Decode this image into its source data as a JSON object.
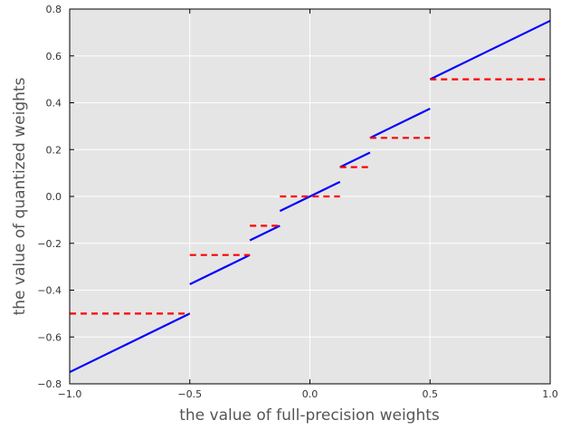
{
  "chart_data": {
    "type": "line",
    "title": "",
    "xlabel": "the value of full-precision weights",
    "ylabel": "the value of quantized weights",
    "xlim": [
      -1.0,
      1.0
    ],
    "ylim": [
      -0.8,
      0.8
    ],
    "grid": true,
    "background": "#e5e5e5",
    "xticks": [
      -1.0,
      -0.5,
      0.0,
      0.5,
      1.0
    ],
    "xtick_labels": [
      "−1.0",
      "−0.5",
      "0.0",
      "0.5",
      "1.0"
    ],
    "yticks": [
      -0.8,
      -0.6,
      -0.4,
      -0.2,
      0.0,
      0.2,
      0.4,
      0.6,
      0.8
    ],
    "ytick_labels": [
      "−0.8",
      "−0.6",
      "−0.4",
      "−0.2",
      "0.0",
      "0.2",
      "0.4",
      "0.6",
      "0.8"
    ],
    "series": [
      {
        "style": "solid",
        "color": "#0000ff",
        "segments": [
          [
            [
              -1.0,
              -0.75
            ],
            [
              -0.5,
              -0.5
            ]
          ],
          [
            [
              -0.5,
              -0.375
            ],
            [
              -0.25,
              -0.25
            ]
          ],
          [
            [
              -0.25,
              -0.1875
            ],
            [
              -0.125,
              -0.125
            ]
          ],
          [
            [
              -0.125,
              -0.0625
            ],
            [
              0.125,
              0.0625
            ]
          ],
          [
            [
              0.125,
              0.125
            ],
            [
              0.25,
              0.1875
            ]
          ],
          [
            [
              0.25,
              0.25
            ],
            [
              0.5,
              0.375
            ]
          ],
          [
            [
              0.5,
              0.5
            ],
            [
              1.0,
              0.75
            ]
          ]
        ]
      },
      {
        "style": "dashed",
        "color": "#ff0000",
        "segments": [
          [
            [
              -1.0,
              -0.5
            ],
            [
              -0.5,
              -0.5
            ]
          ],
          [
            [
              -0.5,
              -0.25
            ],
            [
              -0.25,
              -0.25
            ]
          ],
          [
            [
              -0.25,
              -0.125
            ],
            [
              -0.125,
              -0.125
            ]
          ],
          [
            [
              -0.125,
              0.0
            ],
            [
              0.125,
              0.0
            ]
          ],
          [
            [
              0.125,
              0.125
            ],
            [
              0.25,
              0.125
            ]
          ],
          [
            [
              0.25,
              0.25
            ],
            [
              0.5,
              0.25
            ]
          ],
          [
            [
              0.5,
              0.5
            ],
            [
              1.0,
              0.5
            ]
          ]
        ]
      }
    ]
  }
}
